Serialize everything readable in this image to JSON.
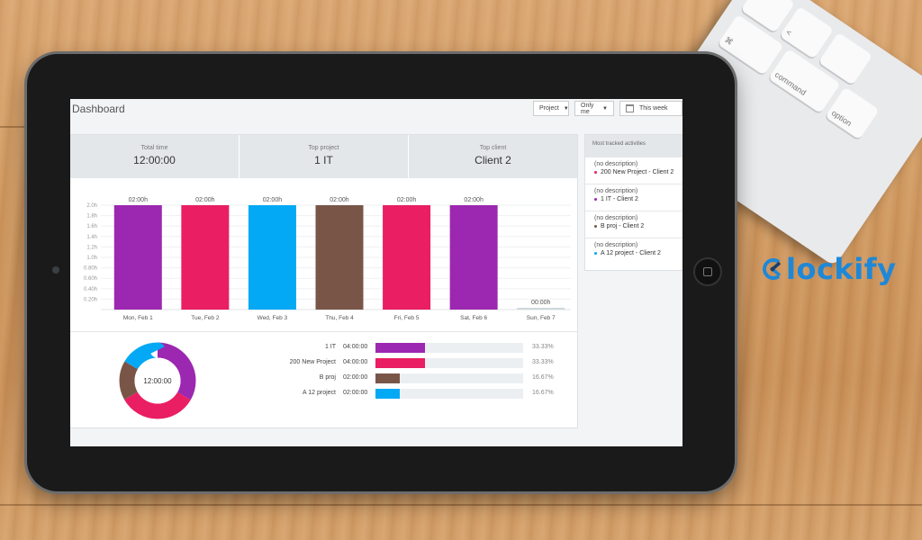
{
  "brand": {
    "name": "lockify",
    "color": "#1e88d8"
  },
  "keyboard": {
    "keys": [
      "",
      "<",
      "⌘",
      "",
      "command",
      "option"
    ]
  },
  "dashboard": {
    "title": "Dashboard",
    "filters": {
      "project": "Project",
      "user": "Only me",
      "range": "This week"
    },
    "stats": [
      {
        "label": "Total time",
        "value": "12:00:00"
      },
      {
        "label": "Top project",
        "value": "1 IT"
      },
      {
        "label": "Top client",
        "value": "Client 2"
      }
    ]
  },
  "chart_data": {
    "type": "bar",
    "categories": [
      "Mon, Feb 1",
      "Tue, Feb 2",
      "Wed, Feb 3",
      "Thu, Feb 4",
      "Fri, Feb 5",
      "Sat, Feb 6",
      "Sun, Feb 7"
    ],
    "values": [
      2.0,
      2.0,
      2.0,
      2.0,
      2.0,
      2.0,
      0.0
    ],
    "data_labels": [
      "02:00h",
      "02:00h",
      "02:00h",
      "02:00h",
      "02:00h",
      "02:00h",
      "00:00h"
    ],
    "colors": [
      "#9c27b0",
      "#e91e63",
      "#03a9f4",
      "#795548",
      "#e91e63",
      "#9c27b0",
      "#cfd8dc"
    ],
    "yticks": [
      "2.0h",
      "1.8h",
      "1.6h",
      "1.4h",
      "1.2h",
      "1.0h",
      "0.80h",
      "0.60h",
      "0.40h",
      "0.20h"
    ],
    "ylim": [
      0,
      2.0
    ],
    "grid": true
  },
  "donut": {
    "center_label": "12:00:00",
    "slices": [
      {
        "name": "1 IT",
        "value": 33.33,
        "color": "#9c27b0"
      },
      {
        "name": "200 New Project",
        "value": 33.33,
        "color": "#e91e63"
      },
      {
        "name": "B proj",
        "value": 16.67,
        "color": "#795548"
      },
      {
        "name": "A 12 project",
        "value": 16.67,
        "color": "#03a9f4"
      }
    ]
  },
  "breakdown": [
    {
      "name": "1 IT",
      "time": "04:00:00",
      "pct": "33.33%",
      "fraction": 0.3333,
      "color": "#9c27b0"
    },
    {
      "name": "200 New Project",
      "time": "04:00:00",
      "pct": "33.33%",
      "fraction": 0.3333,
      "color": "#e91e63"
    },
    {
      "name": "B proj",
      "time": "02:00:00",
      "pct": "16.67%",
      "fraction": 0.1667,
      "color": "#795548"
    },
    {
      "name": "A 12 project",
      "time": "02:00:00",
      "pct": "16.67%",
      "fraction": 0.1667,
      "color": "#03a9f4"
    }
  ],
  "activities": {
    "title": "Most tracked activities",
    "items": [
      {
        "description": "(no description)",
        "project": "200 New Project - Client 2",
        "color": "#e91e63"
      },
      {
        "description": "(no description)",
        "project": "1 IT - Client 2",
        "color": "#9c27b0"
      },
      {
        "description": "(no description)",
        "project": "B proj - Client 2",
        "color": "#795548"
      },
      {
        "description": "(no description)",
        "project": "A 12 project - Client 2",
        "color": "#03a9f4"
      }
    ]
  }
}
